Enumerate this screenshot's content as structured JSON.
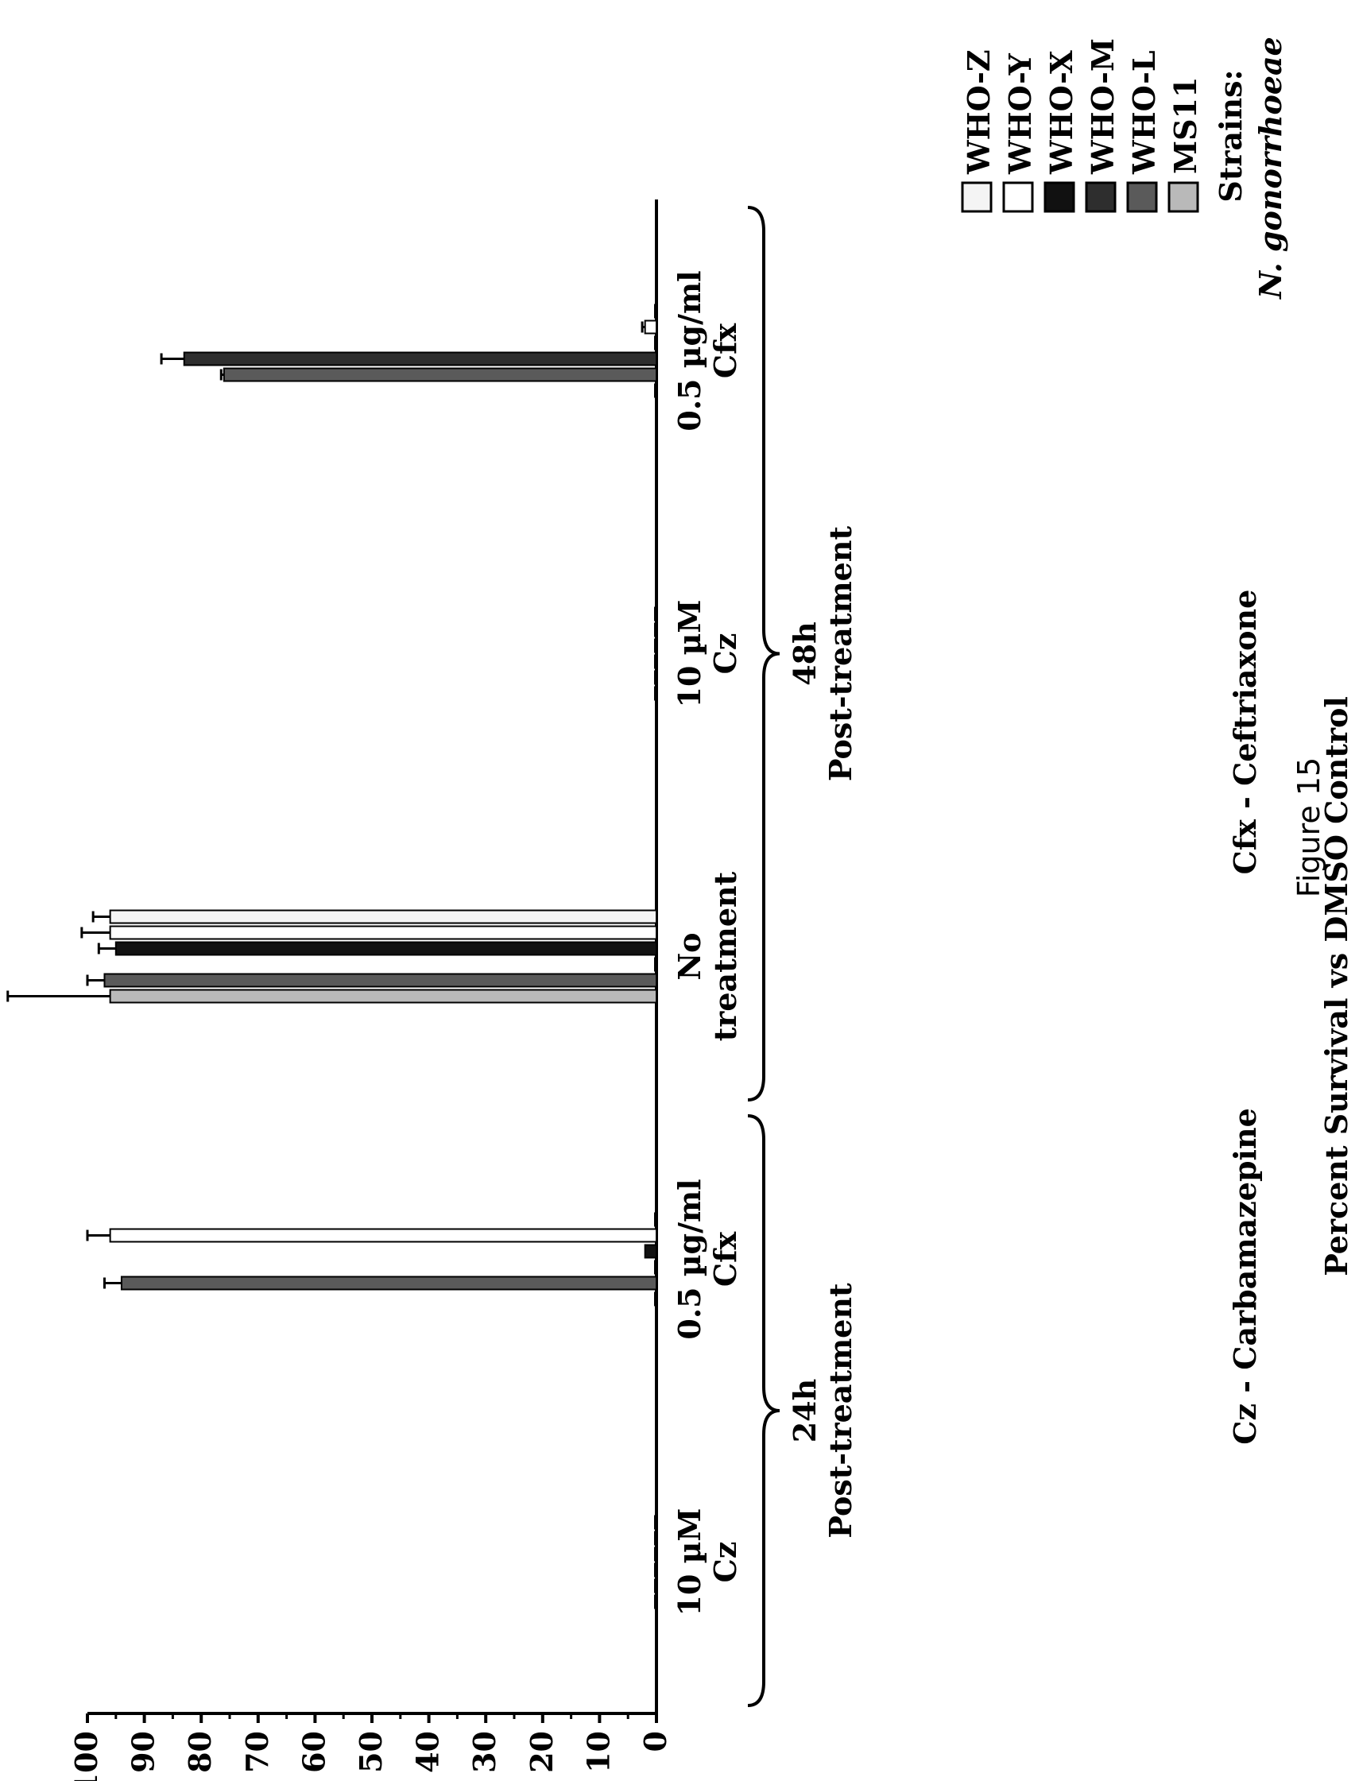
{
  "chart_data": {
    "type": "bar",
    "orientation": "vertical (figure printed rotated 90°)",
    "ylabel": "Percent Survival vs DMSO Control",
    "ylim": [
      0,
      100
    ],
    "yticks": [
      "0",
      "10",
      "20",
      "30",
      "40",
      "50",
      "60",
      "70",
      "80",
      "90",
      "100"
    ],
    "categories": [
      {
        "line1": "10 µM",
        "line2": "Cz"
      },
      {
        "line1": "0.5 µg/ml",
        "line2": "Cfx"
      },
      {
        "line1": "No",
        "line2": "treatment"
      },
      {
        "line1": "10 µM",
        "line2": "Cz"
      },
      {
        "line1": "0.5 µg/ml",
        "line2": "Cfx"
      }
    ],
    "groups": [
      {
        "line1": "24h",
        "line2": "Post-treatment"
      },
      {
        "line1": "48h",
        "line2": "Post-treatment"
      }
    ],
    "legend": {
      "title_italic": "N. gonorrhoeae",
      "title": "Strains:",
      "placement": "top-right"
    },
    "series": [
      {
        "name": "MS11",
        "color": "#b9b9b9",
        "values": [
          0,
          0,
          96,
          0,
          0
        ],
        "errors": [
          0,
          0,
          18,
          0,
          0
        ]
      },
      {
        "name": "WHO-L",
        "color": "#5a5a5a",
        "values": [
          0,
          94,
          97,
          0,
          76
        ],
        "errors": [
          0,
          3,
          3,
          0,
          0.5
        ]
      },
      {
        "name": "WHO-M",
        "color": "#2e2e2e",
        "values": [
          0,
          0,
          0,
          0,
          83
        ],
        "errors": [
          0,
          0,
          0,
          0,
          4
        ]
      },
      {
        "name": "WHO-X",
        "color": "#111111",
        "values": [
          0,
          2,
          95,
          0,
          0
        ],
        "errors": [
          0,
          0,
          3,
          0,
          0
        ]
      },
      {
        "name": "WHO-Y",
        "color": "#ffffff",
        "values": [
          0,
          96,
          96,
          0,
          2
        ],
        "errors": [
          0,
          4,
          5,
          0,
          0.5
        ]
      },
      {
        "name": "WHO-Z",
        "color": "#f4f4f4",
        "values": [
          0,
          0,
          96,
          0,
          0
        ],
        "errors": [
          0,
          0,
          3,
          0,
          0
        ]
      }
    ]
  },
  "footnotes": {
    "cz": "Cz - Carbamazepine",
    "cfx": "Cfx - Ceftriaxone"
  },
  "caption": "Figure 15"
}
